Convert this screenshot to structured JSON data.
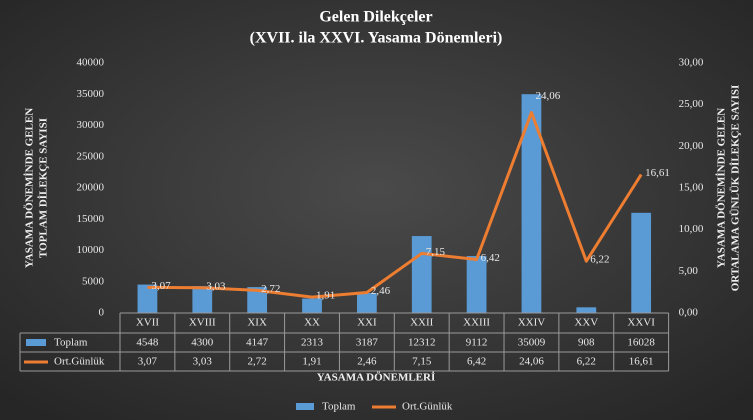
{
  "chart_data": {
    "type": "bar-line",
    "title": [
      "Gelen Dilekçeler",
      "(XVII. ila XXVI. Yasama Dönemleri)"
    ],
    "ylabel": [
      "YASAMA DÖNEMİNDE GELEN",
      "TOPLAM DİLEKÇE SAYISI"
    ],
    "y2label": [
      "YASAMA DÖNEMİNDE GELEN",
      "ORTALAMA GÜNLÜK DİLEKÇE SAYISI"
    ],
    "xlabel": "YASAMA DÖNEMLERİ",
    "categories": [
      "XVII",
      "XVIII",
      "XIX",
      "XX",
      "XXI",
      "XXII",
      "XXIII",
      "XXIV",
      "XXV",
      "XXVI"
    ],
    "series": [
      {
        "name": "Toplam",
        "type": "bar",
        "color": "#5b9bd5",
        "values": [
          4548,
          4300,
          4147,
          2313,
          3187,
          12312,
          9112,
          35009,
          908,
          16028
        ]
      },
      {
        "name": "Ort.Günlük",
        "type": "line",
        "axis": "y2",
        "color": "#ed7d31",
        "values": [
          3.07,
          3.03,
          2.72,
          1.91,
          2.46,
          7.15,
          6.42,
          24.06,
          6.22,
          16.61
        ],
        "value_labels": [
          "3,07",
          "3,03",
          "2,72",
          "1,91",
          "2,46",
          "7,15",
          "6,42",
          "24,06",
          "6,22",
          "16,61"
        ]
      }
    ],
    "ylim": [
      0,
      40000
    ],
    "yticks": [
      0,
      5000,
      10000,
      15000,
      20000,
      25000,
      30000,
      35000,
      40000
    ],
    "y2lim": [
      0,
      30
    ],
    "y2ticks": [
      {
        "value": 0,
        "label": "0,00"
      },
      {
        "value": 5,
        "label": "5,00"
      },
      {
        "value": 10,
        "label": "10,00"
      },
      {
        "value": 15,
        "label": "15,00"
      },
      {
        "value": 20,
        "label": "20,00"
      },
      {
        "value": 25,
        "label": "25,00"
      },
      {
        "value": 30,
        "label": "30,00"
      }
    ],
    "grid": false,
    "legend": "bottom"
  }
}
